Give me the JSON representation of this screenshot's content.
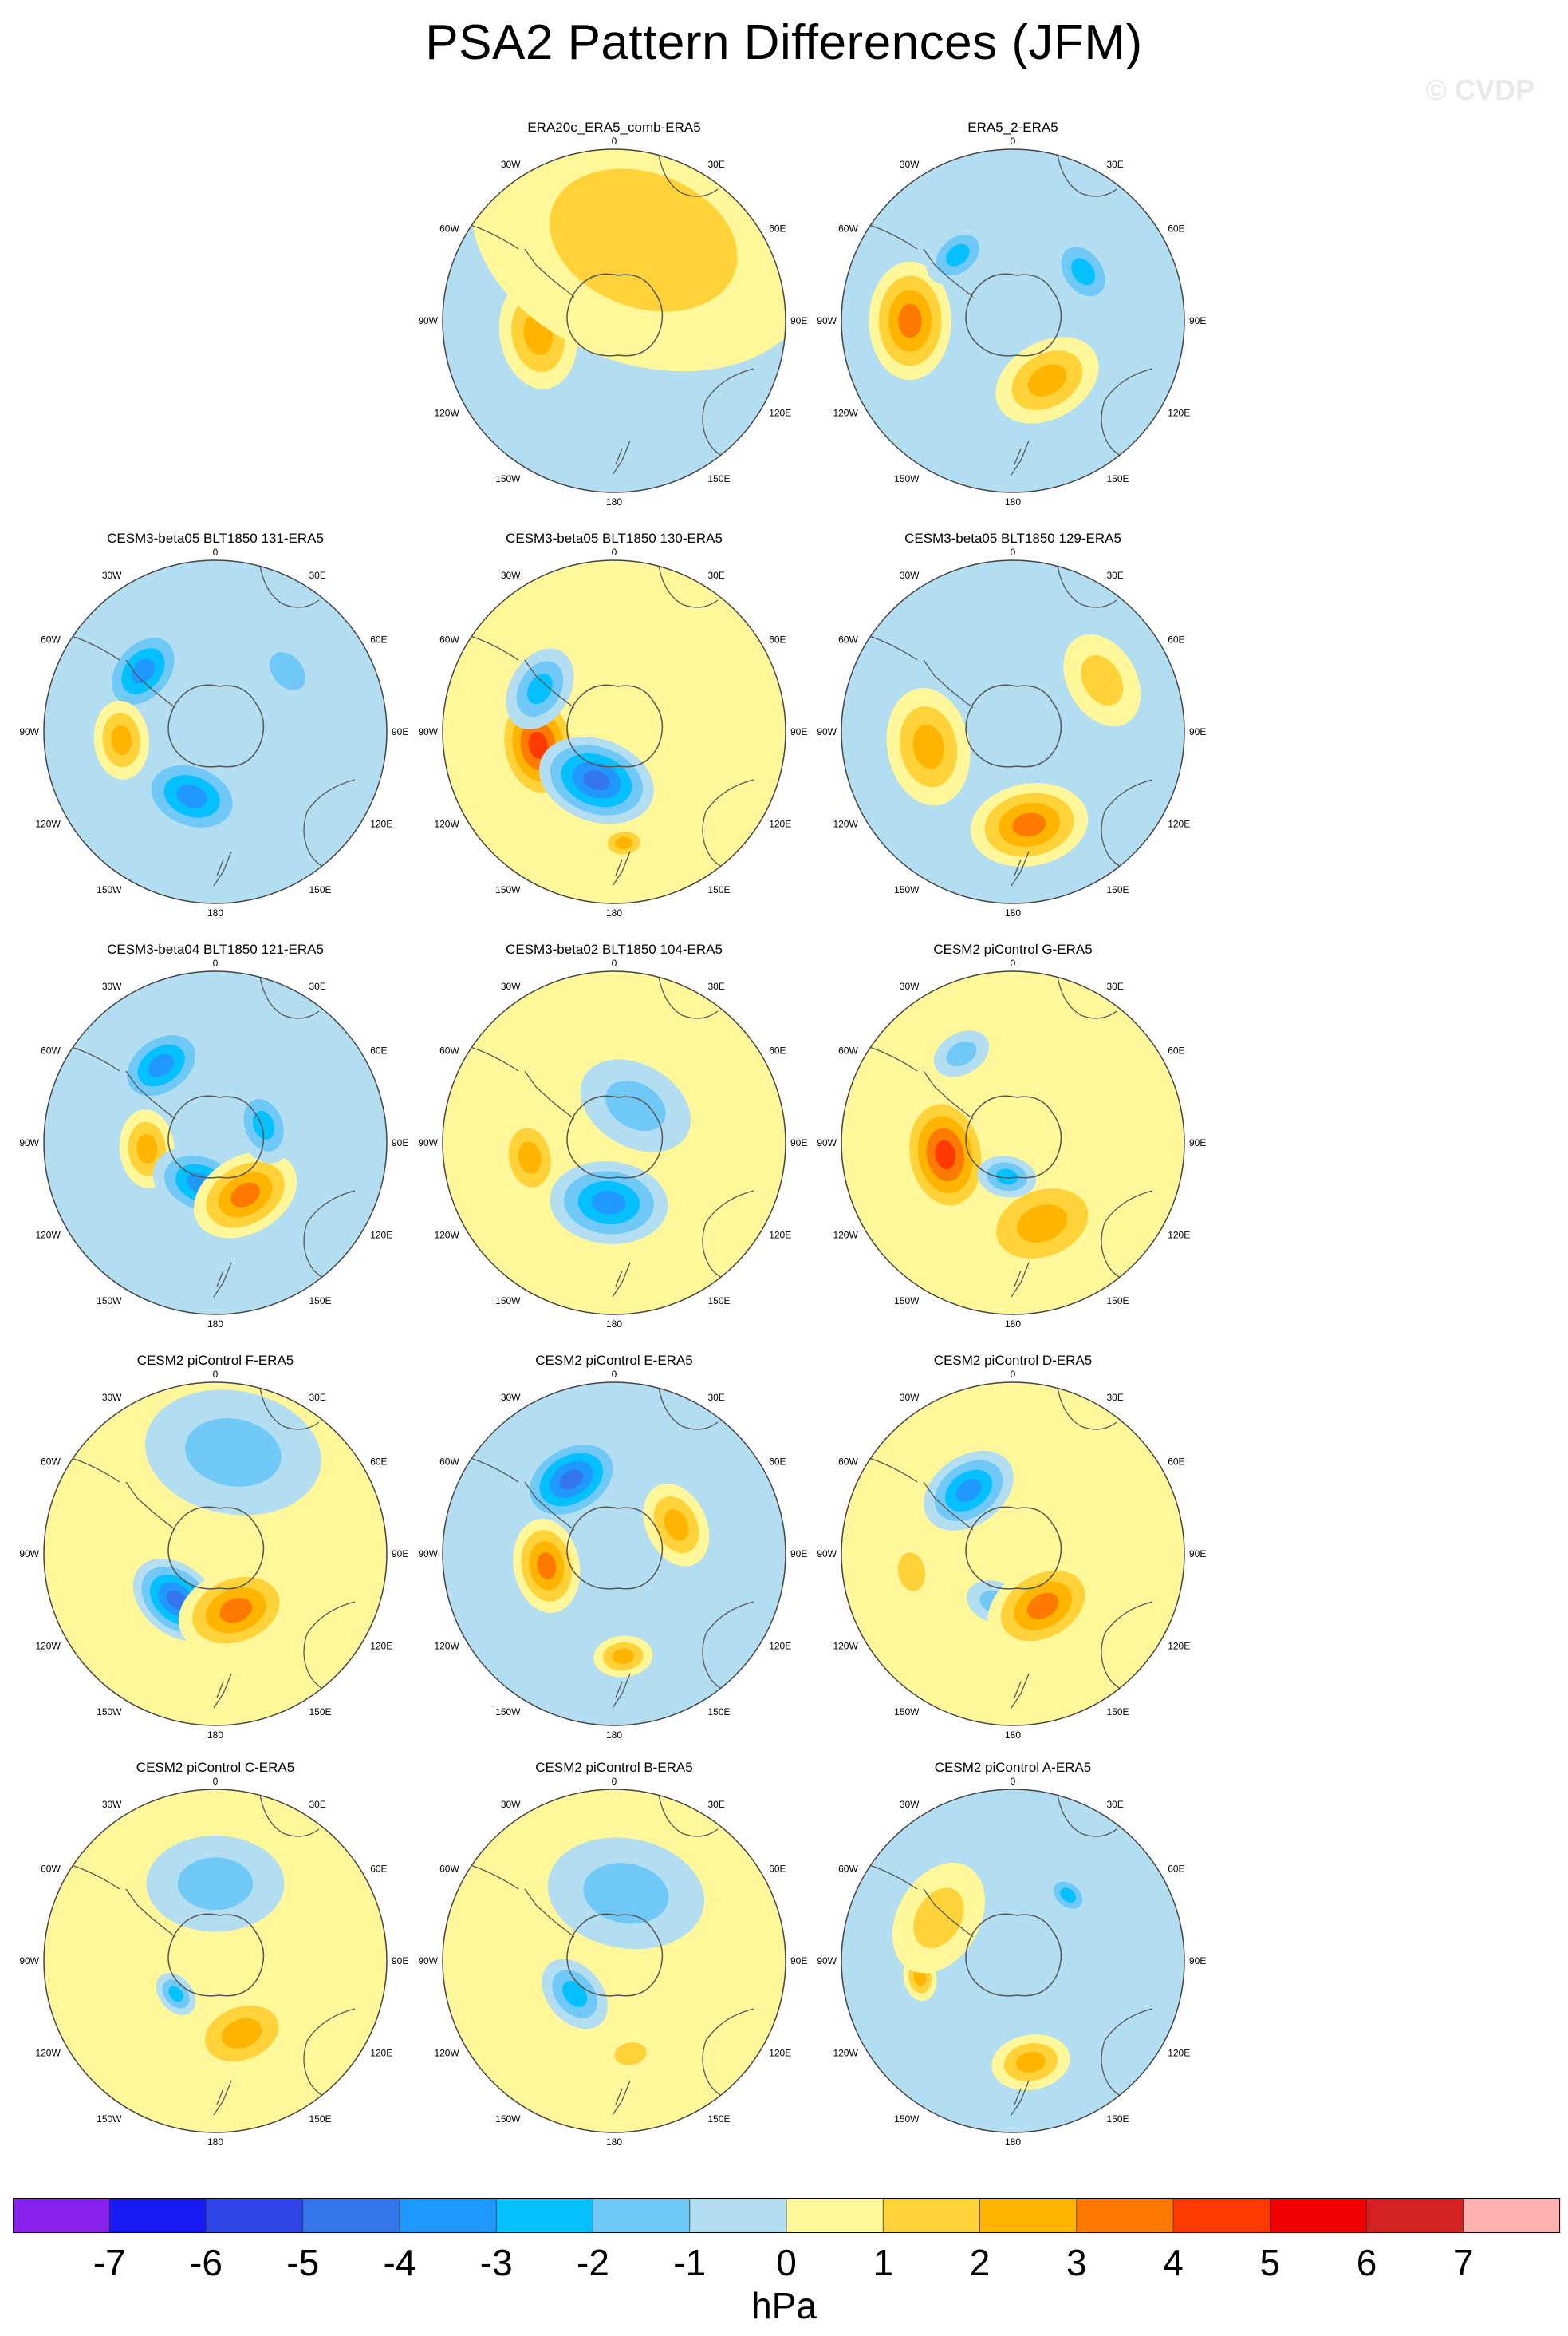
{
  "title": "PSA2 Pattern Differences (JFM)",
  "watermark": "© CVDP",
  "colors": {
    "levels": [
      "#8A22EE",
      "#1A1AF2",
      "#2D45E6",
      "#3477EC",
      "#1F98FF",
      "#05C0FF",
      "#6FC8F5",
      "#B3DEF2",
      "#FFF79A",
      "#FFD23A",
      "#FFB400",
      "#FF7A00",
      "#FF3A00",
      "#F00000",
      "#D42222",
      "#FFB0B0"
    ],
    "coast": "#555555",
    "frame": "#444444"
  },
  "colorbar": {
    "ticks": [
      "-7",
      "-6",
      "-5",
      "-4",
      "-3",
      "-2",
      "-1",
      "0",
      "1",
      "2",
      "3",
      "4",
      "5",
      "6",
      "7"
    ],
    "units": "hPa"
  },
  "map_labels": {
    "top": "0",
    "bottom": "180",
    "left": "90W",
    "right": "90E",
    "ul1": "30W",
    "ur1": "30E",
    "ul2": "60W",
    "ur2": "60E",
    "ll1": "120W",
    "lr1": "120E",
    "ll2": "150W",
    "lr2": "150E"
  },
  "chart_data": {
    "type": "heatmap",
    "projection": "south-polar-stereographic",
    "units": "hPa",
    "color_levels": [
      -7,
      -6,
      -5,
      -4,
      -3,
      -2,
      -1,
      0,
      1,
      2,
      3,
      4,
      5,
      6,
      7
    ],
    "panels": [
      {
        "title": "ERA20c_ERA5_comb-ERA5",
        "background": "neg",
        "features": [
          {
            "angle": -100,
            "r": 0.45,
            "value": 2,
            "size": 0.28
          },
          {
            "angle": 20,
            "r": 0.5,
            "value": 0.5,
            "size": 0.9
          }
        ]
      },
      {
        "title": "ERA5_2-ERA5",
        "background": "neg",
        "features": [
          {
            "angle": -90,
            "r": 0.6,
            "value": 3,
            "size": 0.3
          },
          {
            "angle": -40,
            "r": 0.5,
            "value": -2,
            "size": 0.18
          },
          {
            "angle": 55,
            "r": 0.5,
            "value": -2,
            "size": 0.2
          },
          {
            "angle": 150,
            "r": 0.4,
            "value": 2,
            "size": 0.28
          }
        ]
      },
      {
        "title": "CESM3-beta05 BLT1850 131-ERA5",
        "background": "neg",
        "features": [
          {
            "angle": -50,
            "r": 0.55,
            "value": -3,
            "size": 0.25
          },
          {
            "angle": -95,
            "r": 0.55,
            "value": 2,
            "size": 0.2
          },
          {
            "angle": -160,
            "r": 0.4,
            "value": -3,
            "size": 0.28
          },
          {
            "angle": 50,
            "r": 0.55,
            "value": -1,
            "size": 0.2
          }
        ]
      },
      {
        "title": "CESM3-beta05 BLT1850 130-ERA5",
        "background": "pos",
        "features": [
          {
            "angle": -100,
            "r": 0.45,
            "value": 4,
            "size": 0.3
          },
          {
            "angle": -160,
            "r": 0.3,
            "value": -4,
            "size": 0.3
          },
          {
            "angle": -60,
            "r": 0.5,
            "value": -2,
            "size": 0.22
          },
          {
            "angle": 175,
            "r": 0.65,
            "value": 2,
            "size": 0.12
          }
        ]
      },
      {
        "title": "CESM3-beta05 BLT1850 129-ERA5",
        "background": "neg",
        "features": [
          {
            "angle": -100,
            "r": 0.5,
            "value": 2,
            "size": 0.3
          },
          {
            "angle": 170,
            "r": 0.55,
            "value": 3,
            "size": 0.3
          },
          {
            "angle": 60,
            "r": 0.6,
            "value": 0.5,
            "size": 0.25
          }
        ]
      },
      {
        "title": "CESM3-beta04 BLT1850 121-ERA5",
        "background": "neg",
        "features": [
          {
            "angle": -35,
            "r": 0.55,
            "value": -3,
            "size": 0.25
          },
          {
            "angle": -95,
            "r": 0.4,
            "value": 2,
            "size": 0.2
          },
          {
            "angle": -160,
            "r": 0.25,
            "value": -3,
            "size": 0.25
          },
          {
            "angle": 150,
            "r": 0.35,
            "value": 3,
            "size": 0.28
          },
          {
            "angle": 70,
            "r": 0.3,
            "value": -2,
            "size": 0.2
          }
        ]
      },
      {
        "title": "CESM3-beta02 BLT1850 104-ERA5",
        "background": "pos",
        "features": [
          {
            "angle": -100,
            "r": 0.5,
            "value": 2,
            "size": 0.22
          },
          {
            "angle": -175,
            "r": 0.35,
            "value": -3,
            "size": 0.3
          },
          {
            "angle": 30,
            "r": 0.25,
            "value": -1,
            "size": 0.3
          }
        ]
      },
      {
        "title": "CESM2 piControl G-ERA5",
        "background": "pos",
        "features": [
          {
            "angle": -100,
            "r": 0.4,
            "value": 4,
            "size": 0.32
          },
          {
            "angle": 160,
            "r": 0.5,
            "value": 2,
            "size": 0.35
          },
          {
            "angle": -170,
            "r": 0.2,
            "value": -2,
            "size": 0.15
          },
          {
            "angle": -30,
            "r": 0.6,
            "value": -1,
            "size": 0.15
          }
        ]
      },
      {
        "title": "CESM2 piControl F-ERA5",
        "background": "pos",
        "features": [
          {
            "angle": -140,
            "r": 0.35,
            "value": -4,
            "size": 0.25
          },
          {
            "angle": 160,
            "r": 0.35,
            "value": 3,
            "size": 0.3
          },
          {
            "angle": 10,
            "r": 0.6,
            "value": -1,
            "size": 0.45
          }
        ]
      },
      {
        "title": "CESM2 piControl E-ERA5",
        "background": "neg",
        "features": [
          {
            "angle": -30,
            "r": 0.5,
            "value": -4,
            "size": 0.28
          },
          {
            "angle": -100,
            "r": 0.4,
            "value": 3,
            "size": 0.24
          },
          {
            "angle": 65,
            "r": 0.4,
            "value": 2,
            "size": 0.22
          },
          {
            "angle": 175,
            "r": 0.6,
            "value": 2,
            "size": 0.15
          }
        ]
      },
      {
        "title": "CESM2 piControl D-ERA5",
        "background": "pos",
        "features": [
          {
            "angle": -35,
            "r": 0.45,
            "value": -3,
            "size": 0.25
          },
          {
            "angle": -100,
            "r": 0.6,
            "value": 1,
            "size": 0.18
          },
          {
            "angle": -160,
            "r": 0.3,
            "value": -1,
            "size": 0.15
          },
          {
            "angle": 150,
            "r": 0.35,
            "value": 3,
            "size": 0.3
          }
        ]
      },
      {
        "title": "CESM2 piControl C-ERA5",
        "background": "pos",
        "features": [
          {
            "angle": 0,
            "r": 0.45,
            "value": -1,
            "size": 0.35
          },
          {
            "angle": -130,
            "r": 0.3,
            "value": -2,
            "size": 0.12
          },
          {
            "angle": 160,
            "r": 0.45,
            "value": 2,
            "size": 0.28
          }
        ]
      },
      {
        "title": "CESM2 piControl B-ERA5",
        "background": "pos",
        "features": [
          {
            "angle": -130,
            "r": 0.3,
            "value": -2,
            "size": 0.2
          },
          {
            "angle": 10,
            "r": 0.4,
            "value": -1,
            "size": 0.4
          },
          {
            "angle": 170,
            "r": 0.55,
            "value": 1,
            "size": 0.15
          }
        ]
      },
      {
        "title": "CESM2 piControl A-ERA5",
        "background": "neg",
        "features": [
          {
            "angle": -100,
            "r": 0.55,
            "value": 2,
            "size": 0.12
          },
          {
            "angle": 170,
            "r": 0.6,
            "value": 2,
            "size": 0.2
          },
          {
            "angle": 40,
            "r": 0.5,
            "value": -2,
            "size": 0.12
          },
          {
            "angle": -60,
            "r": 0.5,
            "value": 0.5,
            "size": 0.3
          }
        ]
      }
    ]
  }
}
